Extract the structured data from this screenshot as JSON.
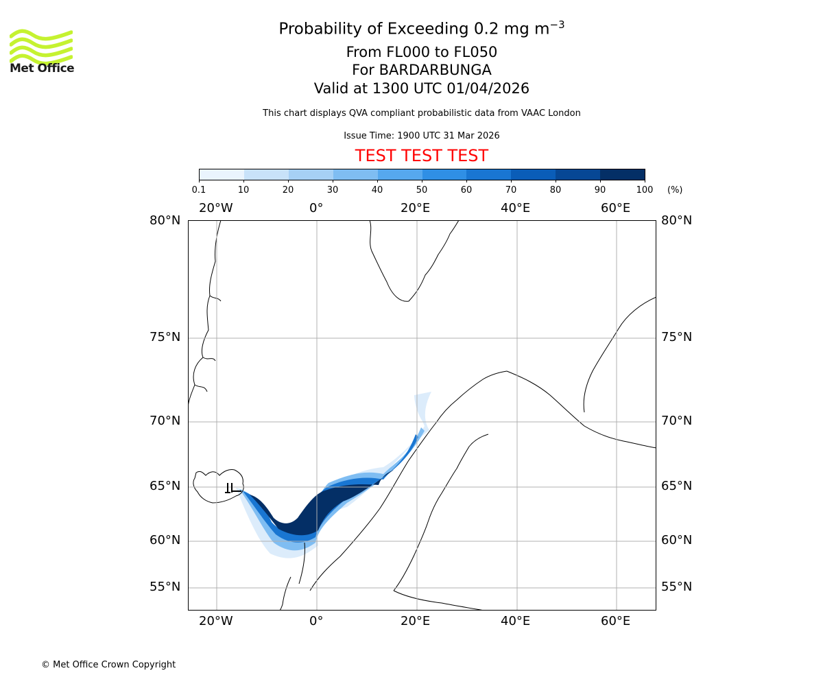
{
  "logo": {
    "text": "Met Office",
    "color": "#c5f230"
  },
  "title": {
    "line1_prefix": "Probability of Exceeding 0.2 mg m",
    "line1_superscript": "−3",
    "line2": "From FL000 to FL050",
    "line3": "For BARDARBUNGA",
    "line4": "Valid at 1300 UTC 01/04/2026"
  },
  "description": "This chart displays QVA compliant probabilistic data from VAAC London",
  "issue_time": "Issue Time: 1900 UTC 31 Mar 2026",
  "test_banner": {
    "text": "TEST TEST TEST",
    "color": "#ff0000"
  },
  "colorbar": {
    "ticks": [
      "0.1",
      "10",
      "20",
      "30",
      "40",
      "50",
      "60",
      "70",
      "80",
      "90",
      "100"
    ],
    "unit": "(%)",
    "colors": [
      "#eaf4fd",
      "#c8e2f9",
      "#a6d0f5",
      "#7fbdf2",
      "#56a8ee",
      "#2f8fe5",
      "#1976d2",
      "#0a5db8",
      "#064795",
      "#042f66"
    ]
  },
  "map": {
    "longitude_labels": [
      "20°W",
      "0°",
      "20°E",
      "40°E",
      "60°E"
    ],
    "latitude_labels": [
      "80°N",
      "75°N",
      "70°N",
      "65°N",
      "60°N",
      "55°N"
    ],
    "volcano": "BARDARBUNGA",
    "colors": {
      "land_outline": "#000000",
      "grid": "#b0b0b0"
    }
  },
  "copyright": "© Met Office Crown Copyright"
}
